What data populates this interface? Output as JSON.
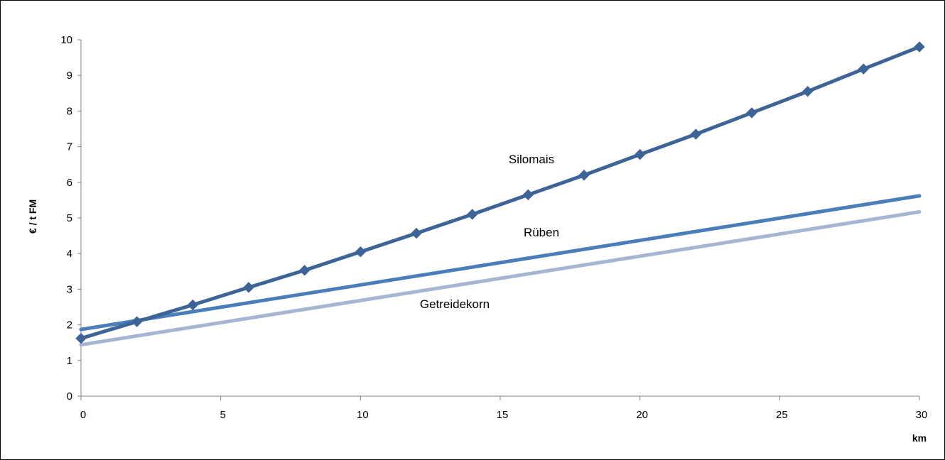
{
  "chart_data": {
    "type": "line",
    "title": "",
    "xlabel": "km",
    "ylabel": "€ / t FM",
    "xlim": [
      0,
      30
    ],
    "ylim": [
      0,
      10
    ],
    "x_ticks": [
      0,
      5,
      10,
      15,
      20,
      25,
      30
    ],
    "y_ticks": [
      0,
      1,
      2,
      3,
      4,
      5,
      6,
      7,
      8,
      9,
      10
    ],
    "grid": false,
    "legend": "none",
    "series": [
      {
        "name": "Silomais",
        "color": "#3D6497",
        "markers": true,
        "x": [
          0,
          2,
          4,
          6,
          8,
          10,
          12,
          14,
          16,
          18,
          20,
          22,
          24,
          26,
          28,
          30
        ],
        "y": [
          1.62,
          2.09,
          2.56,
          3.05,
          3.53,
          4.05,
          4.57,
          5.1,
          5.65,
          6.2,
          6.78,
          7.35,
          7.95,
          8.55,
          9.18,
          9.8
        ]
      },
      {
        "name": "Rüben",
        "color": "#4A7EBB",
        "markers": false,
        "x": [
          0,
          30
        ],
        "y": [
          1.87,
          5.62
        ]
      },
      {
        "name": "Getreidekorn",
        "color": "#A5B5D2",
        "markers": false,
        "x": [
          0,
          30
        ],
        "y": [
          1.44,
          5.17
        ]
      }
    ]
  }
}
